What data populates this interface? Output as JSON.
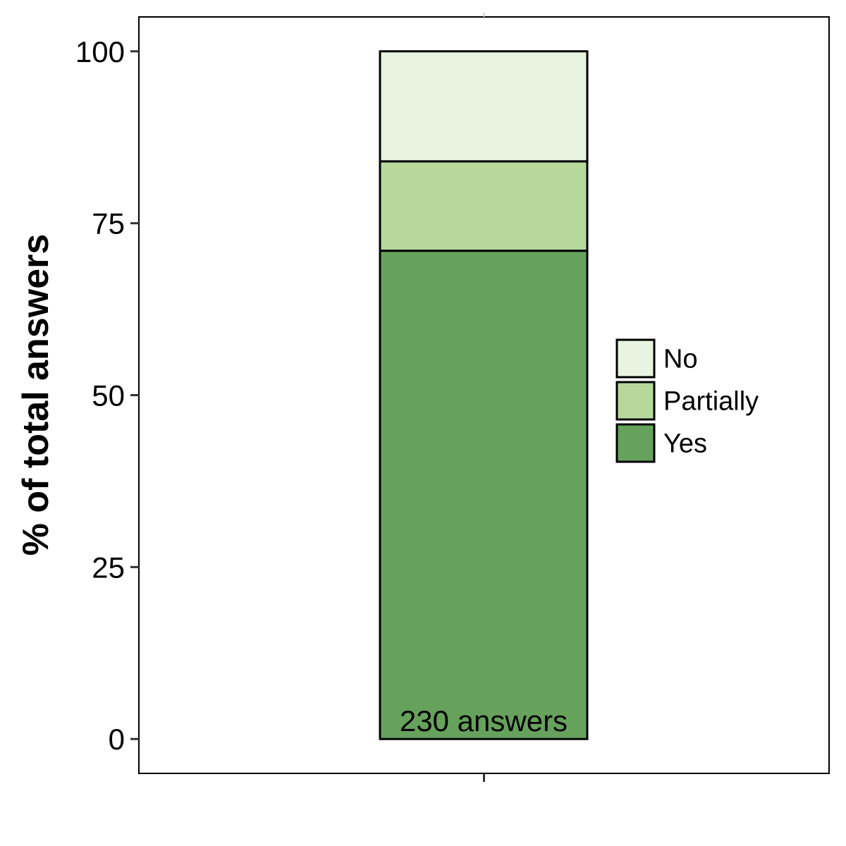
{
  "chart_data": {
    "type": "bar",
    "stacked": true,
    "categories": [
      ""
    ],
    "series": [
      {
        "name": "Yes",
        "values": [
          71
        ],
        "color": "#66a25c"
      },
      {
        "name": "Partially",
        "values": [
          13
        ],
        "color": "#b6d99b"
      },
      {
        "name": "No",
        "values": [
          16
        ],
        "color": "#e8f4e0"
      }
    ],
    "legend_order": [
      "No",
      "Partially",
      "Yes"
    ],
    "legend_position": "right",
    "ylabel": "% of total answers",
    "xlabel": "",
    "ylim": [
      -5,
      105
    ],
    "yticks": [
      0,
      25,
      50,
      75,
      100
    ],
    "bar_annotation": "230 answers",
    "grid": false
  }
}
